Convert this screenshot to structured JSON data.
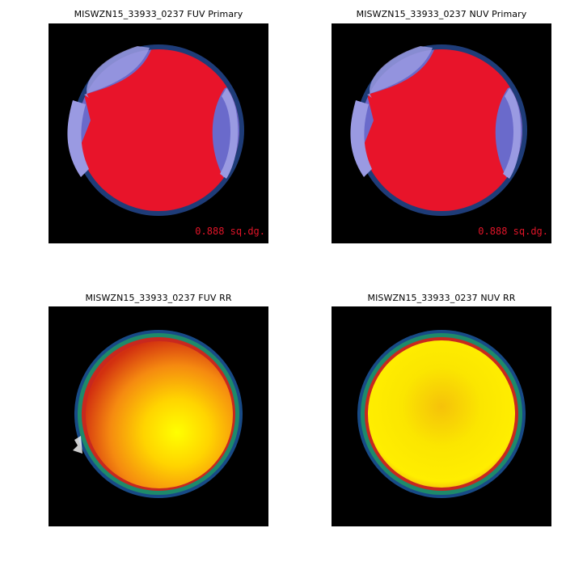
{
  "panels": {
    "fuv_primary": {
      "title": "MISWZN15_33933_0237 FUV Primary",
      "area": "0.888 sq.dg."
    },
    "nuv_primary": {
      "title": "MISWZN15_33933_0237 NUV Primary",
      "area": "0.888 sq.dg."
    },
    "fuv_rr": {
      "title": "MISWZN15_33933_0237 FUV RR"
    },
    "nuv_rr": {
      "title": "MISWZN15_33933_0237 NUV RR"
    }
  },
  "colors": {
    "primary_fill": "#e8142a",
    "overlap_fill": "#6a6acb",
    "overlap_light": "#9a9ae2",
    "edge_ring": "#1e3c78",
    "background": "#000000"
  }
}
